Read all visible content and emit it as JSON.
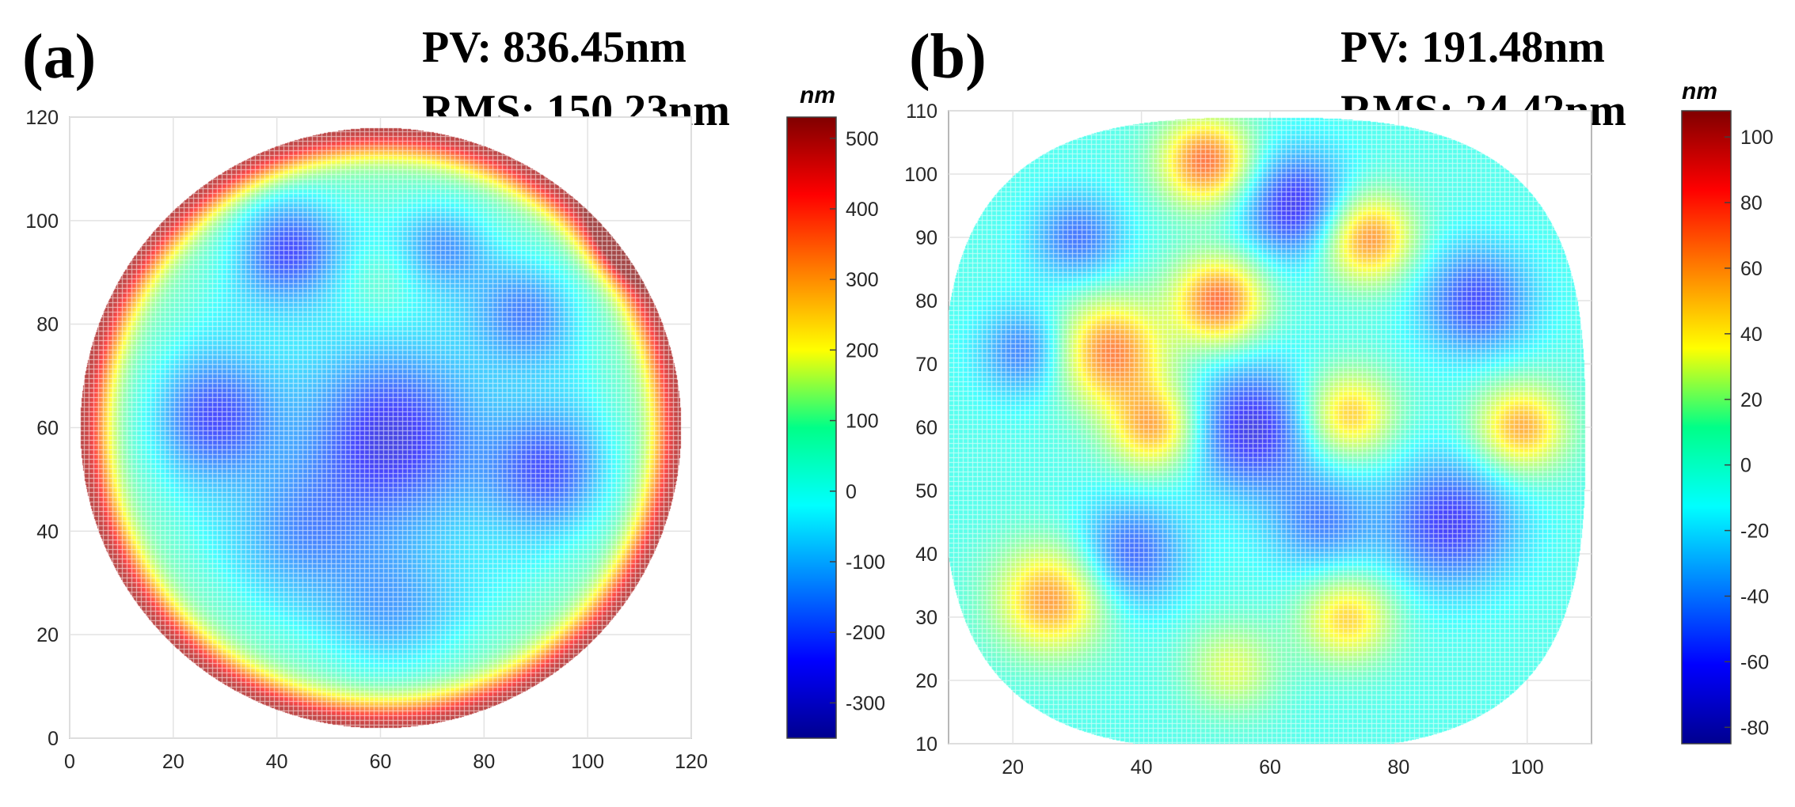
{
  "chart_data": [
    {
      "type": "heatmap",
      "panel_label": "(a)",
      "annotations": {
        "pv": "PV: 836.45nm",
        "rms": "RMS: 150.23nm"
      },
      "colorbar": {
        "unit": "nm",
        "range": [
          -350,
          530
        ],
        "ticks": [
          500,
          400,
          300,
          200,
          100,
          0,
          -100,
          -200,
          -300
        ]
      },
      "xlim": [
        0,
        120
      ],
      "ylim": [
        0,
        120
      ],
      "xticks": [
        0,
        20,
        40,
        60,
        80,
        100,
        120
      ],
      "yticks": [
        0,
        20,
        40,
        60,
        80,
        100,
        120
      ],
      "aperture": {
        "shape": "circle",
        "center": [
          60,
          60
        ],
        "radius": 58
      },
      "grid": true,
      "surface_features": [
        {
          "x": 60,
          "y": 60,
          "value": 520,
          "sigma": 0,
          "note": "edge ring"
        },
        {
          "x": 62,
          "y": 58,
          "value": -250,
          "sigma": 11
        },
        {
          "x": 28,
          "y": 62,
          "value": -210,
          "sigma": 8
        },
        {
          "x": 42,
          "y": 95,
          "value": -220,
          "sigma": 7
        },
        {
          "x": 92,
          "y": 52,
          "value": -200,
          "sigma": 8
        },
        {
          "x": 88,
          "y": 82,
          "value": -150,
          "sigma": 7
        },
        {
          "x": 72,
          "y": 95,
          "value": -130,
          "sigma": 6
        },
        {
          "x": 45,
          "y": 40,
          "value": -120,
          "sigma": 9
        },
        {
          "x": 62,
          "y": 25,
          "value": -110,
          "sigma": 9
        },
        {
          "x": 60,
          "y": 88,
          "value": 60,
          "sigma": 6
        },
        {
          "x": 108,
          "y": 97,
          "value": 260,
          "sigma": 5
        }
      ]
    },
    {
      "type": "heatmap",
      "panel_label": "(b)",
      "annotations": {
        "pv": "PV: 191.48nm",
        "rms": "RMS: 24.42nm"
      },
      "colorbar": {
        "unit": "nm",
        "range": [
          -85,
          108
        ],
        "ticks": [
          100,
          80,
          60,
          40,
          20,
          0,
          -20,
          -40,
          -60,
          -80
        ]
      },
      "xlim": [
        10,
        110
      ],
      "ylim": [
        10,
        110
      ],
      "xticks": [
        20,
        40,
        60,
        80,
        100
      ],
      "yticks": [
        10,
        20,
        30,
        40,
        50,
        60,
        70,
        80,
        90,
        100,
        110
      ],
      "aperture": {
        "shape": "rounded-square",
        "center": [
          59,
          59
        ],
        "radius": 50
      },
      "grid": true,
      "surface_features": [
        {
          "x": 35,
          "y": 72,
          "value": 75,
          "sigma": 6
        },
        {
          "x": 42,
          "y": 60,
          "value": 65,
          "sigma": 5
        },
        {
          "x": 52,
          "y": 80,
          "value": 80,
          "sigma": 5
        },
        {
          "x": 50,
          "y": 102,
          "value": 80,
          "sigma": 5
        },
        {
          "x": 75,
          "y": 90,
          "value": 75,
          "sigma": 5
        },
        {
          "x": 72,
          "y": 62,
          "value": 60,
          "sigma": 5
        },
        {
          "x": 99,
          "y": 60,
          "value": 65,
          "sigma": 5
        },
        {
          "x": 26,
          "y": 33,
          "value": 70,
          "sigma": 6
        },
        {
          "x": 72,
          "y": 30,
          "value": 55,
          "sigma": 5
        },
        {
          "x": 54,
          "y": 22,
          "value": 35,
          "sigma": 5
        },
        {
          "x": 64,
          "y": 95,
          "value": -60,
          "sigma": 6
        },
        {
          "x": 57,
          "y": 60,
          "value": -60,
          "sigma": 7
        },
        {
          "x": 88,
          "y": 45,
          "value": -55,
          "sigma": 7
        },
        {
          "x": 92,
          "y": 80,
          "value": -50,
          "sigma": 6
        },
        {
          "x": 38,
          "y": 40,
          "value": -45,
          "sigma": 6
        },
        {
          "x": 22,
          "y": 72,
          "value": -40,
          "sigma": 5
        },
        {
          "x": 30,
          "y": 90,
          "value": -40,
          "sigma": 5
        },
        {
          "x": 68,
          "y": 45,
          "value": -35,
          "sigma": 6
        }
      ]
    }
  ]
}
